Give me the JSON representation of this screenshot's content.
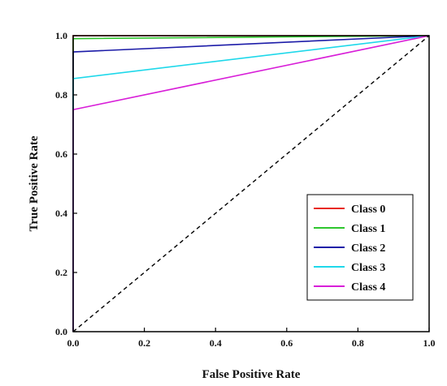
{
  "chart_data": {
    "type": "line",
    "title": "",
    "xlabel": "False Positive Rate",
    "ylabel": "True Positive Rate",
    "xlim": [
      0.0,
      1.0
    ],
    "ylim": [
      0.0,
      1.0
    ],
    "xticks": [
      "0.0",
      "0.2",
      "0.4",
      "0.6",
      "0.8",
      "1.0"
    ],
    "yticks": [
      "0.0",
      "0.2",
      "0.4",
      "0.6",
      "0.8",
      "1.0"
    ],
    "grid": false,
    "legend_position": "bottom-right",
    "series": [
      {
        "name": "Class 0",
        "color": "#e8291c",
        "x": [
          0.0,
          0.0,
          1.0
        ],
        "y": [
          0.0,
          1.0,
          1.0
        ]
      },
      {
        "name": "Class 1",
        "color": "#2ec62e",
        "x": [
          0.0,
          0.0,
          1.0
        ],
        "y": [
          0.0,
          0.99,
          1.0
        ]
      },
      {
        "name": "Class 2",
        "color": "#1c1ca8",
        "x": [
          0.0,
          0.0,
          1.0
        ],
        "y": [
          0.0,
          0.945,
          1.0
        ]
      },
      {
        "name": "Class 3",
        "color": "#1ed8ea",
        "x": [
          0.0,
          0.0,
          1.0
        ],
        "y": [
          0.0,
          0.855,
          1.0
        ]
      },
      {
        "name": "Class 4",
        "color": "#d81ed8",
        "x": [
          0.0,
          0.0,
          1.0
        ],
        "y": [
          0.0,
          0.75,
          1.0
        ]
      }
    ],
    "reference_line": {
      "style": "dashed",
      "color": "#000000",
      "x": [
        0.0,
        1.0
      ],
      "y": [
        0.0,
        1.0
      ]
    }
  }
}
